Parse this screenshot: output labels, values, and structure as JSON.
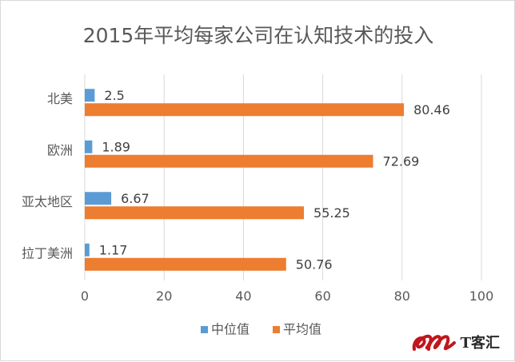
{
  "chart_data": {
    "type": "bar",
    "orientation": "horizontal",
    "title": "2015年平均每家公司在认知技术的投入",
    "categories": [
      "北美",
      "欧洲",
      "亚太地区",
      "拉丁美洲"
    ],
    "series": [
      {
        "name": "中位值",
        "values": [
          2.5,
          1.89,
          6.67,
          1.17
        ],
        "color": "#5b9bd5"
      },
      {
        "name": "平均值",
        "values": [
          80.46,
          72.69,
          55.25,
          50.76
        ],
        "color": "#ed7d31"
      }
    ],
    "value_labels": [
      [
        "2.5",
        "1.89",
        "6.67",
        "1.17"
      ],
      [
        "80.46",
        "72.69",
        "55.25",
        "50.76"
      ]
    ],
    "xlim": [
      0,
      100
    ],
    "xticks": [
      "0",
      "20",
      "40",
      "60",
      "80",
      "100"
    ],
    "grid": true,
    "legend_position": "bottom"
  },
  "watermark": {
    "text": "T客汇"
  }
}
